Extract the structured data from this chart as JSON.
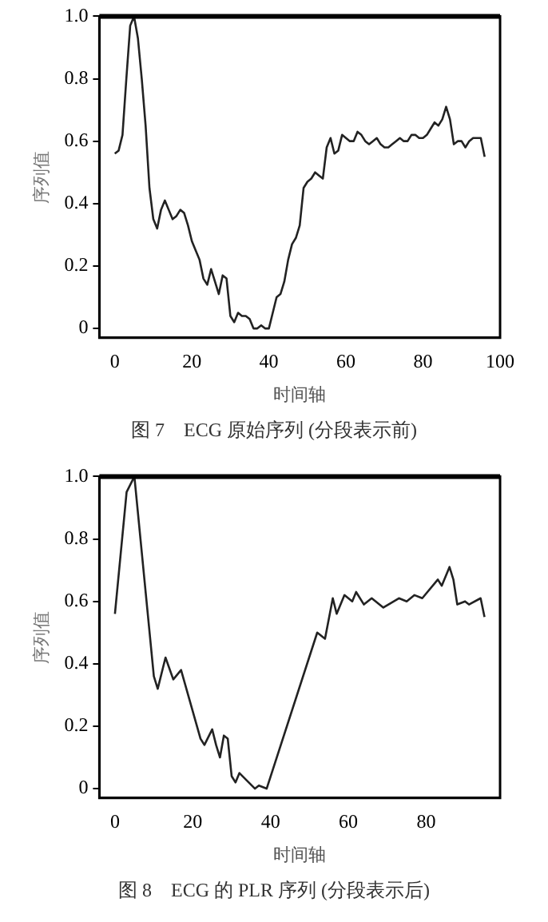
{
  "chart_data": [
    {
      "type": "line",
      "title": "图 7　ECG 原始序列 (分段表示前)",
      "xlabel": "时间轴",
      "ylabel": "序列值",
      "xlim": [
        -4,
        100
      ],
      "ylim": [
        -0.03,
        1.0
      ],
      "xticks": [
        0,
        20,
        40,
        60,
        80,
        100
      ],
      "yticks": [
        0,
        0.2,
        0.4,
        0.6,
        0.8,
        {
          "value": 1,
          "label": "1.0"
        }
      ],
      "grid": false,
      "legend": false,
      "marker": "none",
      "line_style": "solid",
      "series": [
        {
          "color": "#222222",
          "x": [
            0,
            1,
            2,
            3,
            4,
            5,
            6,
            7,
            8,
            9,
            10,
            11,
            12,
            13,
            14,
            15,
            16,
            17,
            18,
            19,
            20,
            21,
            22,
            23,
            24,
            25,
            26,
            27,
            28,
            29,
            30,
            31,
            32,
            33,
            34,
            35,
            36,
            37,
            38,
            39,
            40,
            41,
            42,
            43,
            44,
            45,
            46,
            47,
            48,
            49,
            50,
            51,
            52,
            53,
            54,
            55,
            56,
            57,
            58,
            59,
            60,
            61,
            62,
            63,
            64,
            65,
            66,
            67,
            68,
            69,
            70,
            71,
            72,
            73,
            74,
            75,
            76,
            77,
            78,
            79,
            80,
            81,
            82,
            83,
            84,
            85,
            86,
            87,
            88,
            89,
            90,
            91,
            92,
            93,
            94,
            95,
            96
          ],
          "values": [
            0.56,
            0.57,
            0.62,
            0.8,
            0.97,
            1.0,
            0.93,
            0.8,
            0.65,
            0.45,
            0.35,
            0.32,
            0.38,
            0.41,
            0.38,
            0.35,
            0.36,
            0.38,
            0.37,
            0.33,
            0.28,
            0.25,
            0.22,
            0.16,
            0.14,
            0.19,
            0.15,
            0.11,
            0.17,
            0.16,
            0.04,
            0.02,
            0.05,
            0.04,
            0.04,
            0.03,
            0.0,
            0.0,
            0.01,
            0.0,
            0.0,
            0.05,
            0.1,
            0.11,
            0.15,
            0.22,
            0.27,
            0.29,
            0.33,
            0.45,
            0.47,
            0.48,
            0.5,
            0.49,
            0.48,
            0.58,
            0.61,
            0.56,
            0.57,
            0.62,
            0.61,
            0.6,
            0.6,
            0.63,
            0.62,
            0.6,
            0.59,
            0.6,
            0.61,
            0.59,
            0.58,
            0.58,
            0.59,
            0.6,
            0.61,
            0.6,
            0.6,
            0.62,
            0.62,
            0.61,
            0.61,
            0.62,
            0.64,
            0.66,
            0.65,
            0.67,
            0.71,
            0.67,
            0.59,
            0.6,
            0.6,
            0.58,
            0.6,
            0.61,
            0.61,
            0.61,
            0.55
          ]
        }
      ]
    },
    {
      "type": "line",
      "title": "图 8　ECG 的 PLR 序列 (分段表示后)",
      "xlabel": "时间轴",
      "ylabel": "序列值",
      "xlim": [
        -4,
        99
      ],
      "ylim": [
        -0.03,
        1.0
      ],
      "xticks": [
        0,
        20,
        40,
        60,
        80
      ],
      "yticks": [
        0,
        0.2,
        0.4,
        0.6,
        0.8,
        {
          "value": 1,
          "label": "1.0"
        }
      ],
      "grid": false,
      "legend": false,
      "marker": "none",
      "line_style": "solid",
      "series": [
        {
          "color": "#222222",
          "x": [
            0,
            3,
            5,
            10,
            11,
            13,
            15,
            17,
            22,
            23,
            25,
            26,
            27,
            28,
            29,
            30,
            31,
            32,
            36,
            37,
            39,
            52,
            54,
            56,
            57,
            59,
            61,
            62,
            64,
            66,
            69,
            73,
            75,
            77,
            79,
            83,
            84,
            86,
            87,
            88,
            90,
            91,
            94,
            95
          ],
          "values": [
            0.56,
            0.95,
            1.0,
            0.36,
            0.32,
            0.42,
            0.35,
            0.38,
            0.16,
            0.14,
            0.19,
            0.14,
            0.1,
            0.17,
            0.16,
            0.04,
            0.02,
            0.05,
            0.0,
            0.01,
            0.0,
            0.5,
            0.48,
            0.61,
            0.56,
            0.62,
            0.6,
            0.63,
            0.59,
            0.61,
            0.58,
            0.61,
            0.6,
            0.62,
            0.61,
            0.67,
            0.65,
            0.71,
            0.67,
            0.59,
            0.6,
            0.59,
            0.61,
            0.55
          ]
        }
      ]
    }
  ]
}
